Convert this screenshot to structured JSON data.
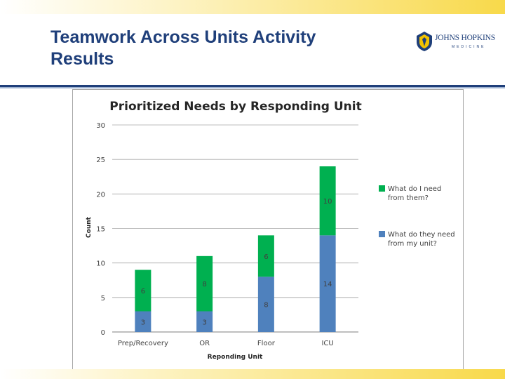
{
  "slide": {
    "title": "Teamwork Across Units Activity Results",
    "logo_name": "JOHNS HOPKINS",
    "logo_sub": "MEDICINE"
  },
  "colors": {
    "title": "#1f3f7a",
    "green": "#00b050",
    "blue": "#4f81bd",
    "grid": "#a6a6a6"
  },
  "chart_data": {
    "type": "bar",
    "stacked": true,
    "title": "Prioritized Needs by Responding Unit",
    "xlabel": "Reponding Unit",
    "ylabel": "Count",
    "categories": [
      "Prep/Recovery",
      "OR",
      "Floor",
      "ICU"
    ],
    "ylim": [
      0,
      30
    ],
    "yticks": [
      0,
      5,
      10,
      15,
      20,
      25,
      30
    ],
    "grid": true,
    "legend_position": "right",
    "series": [
      {
        "name": "What do they need from my unit?",
        "color": "#4f81bd",
        "values": [
          3,
          3,
          8,
          14
        ]
      },
      {
        "name": "What do I need from them?",
        "color": "#00b050",
        "values": [
          6,
          8,
          6,
          10
        ]
      }
    ]
  }
}
